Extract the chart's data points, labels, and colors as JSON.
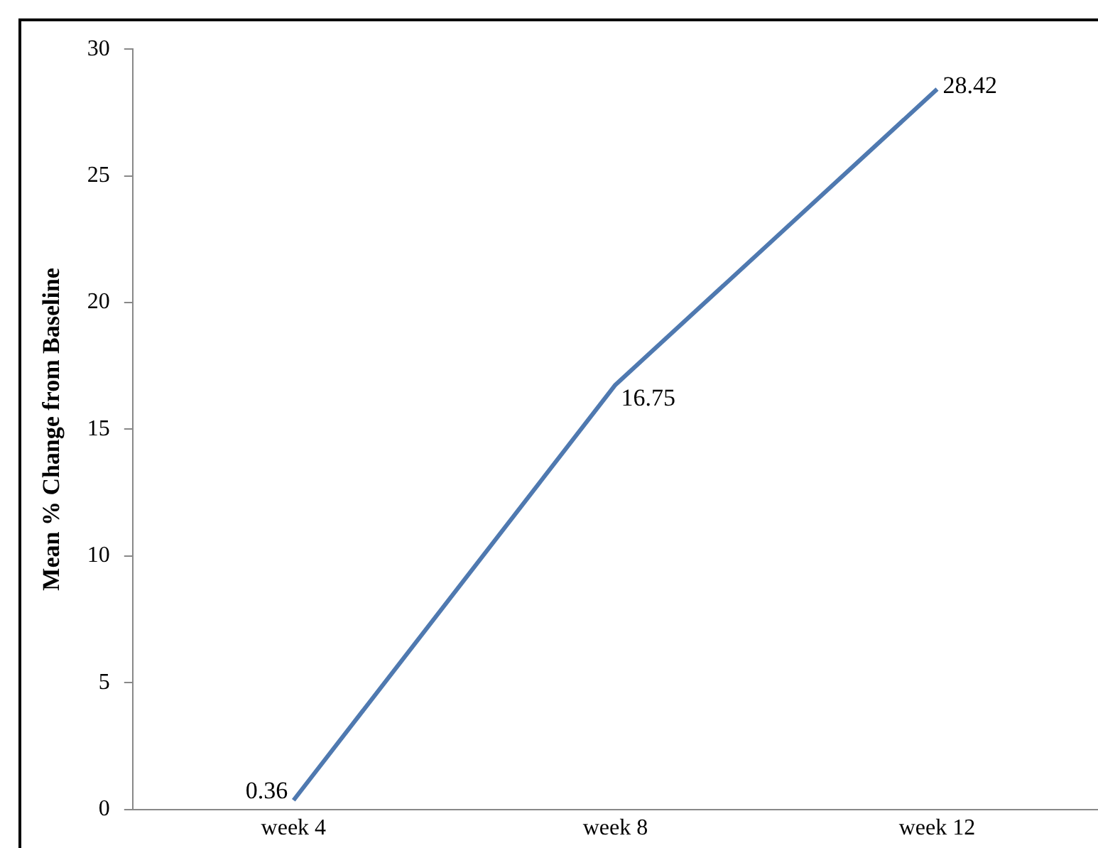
{
  "chart_data": {
    "type": "line",
    "ylabel": "Mean % Change from Baseline",
    "categories": [
      "week 4",
      "week 8",
      "week 12"
    ],
    "series": [
      {
        "color": "#4f79b0",
        "values": [
          0.36,
          16.75,
          28.42
        ]
      }
    ],
    "ylim": [
      0,
      30
    ],
    "yticks": [
      0,
      5,
      10,
      15,
      20,
      25,
      30
    ],
    "grid": false,
    "legend": false,
    "marker": "none",
    "line_style": "solid",
    "data_labels": true
  }
}
